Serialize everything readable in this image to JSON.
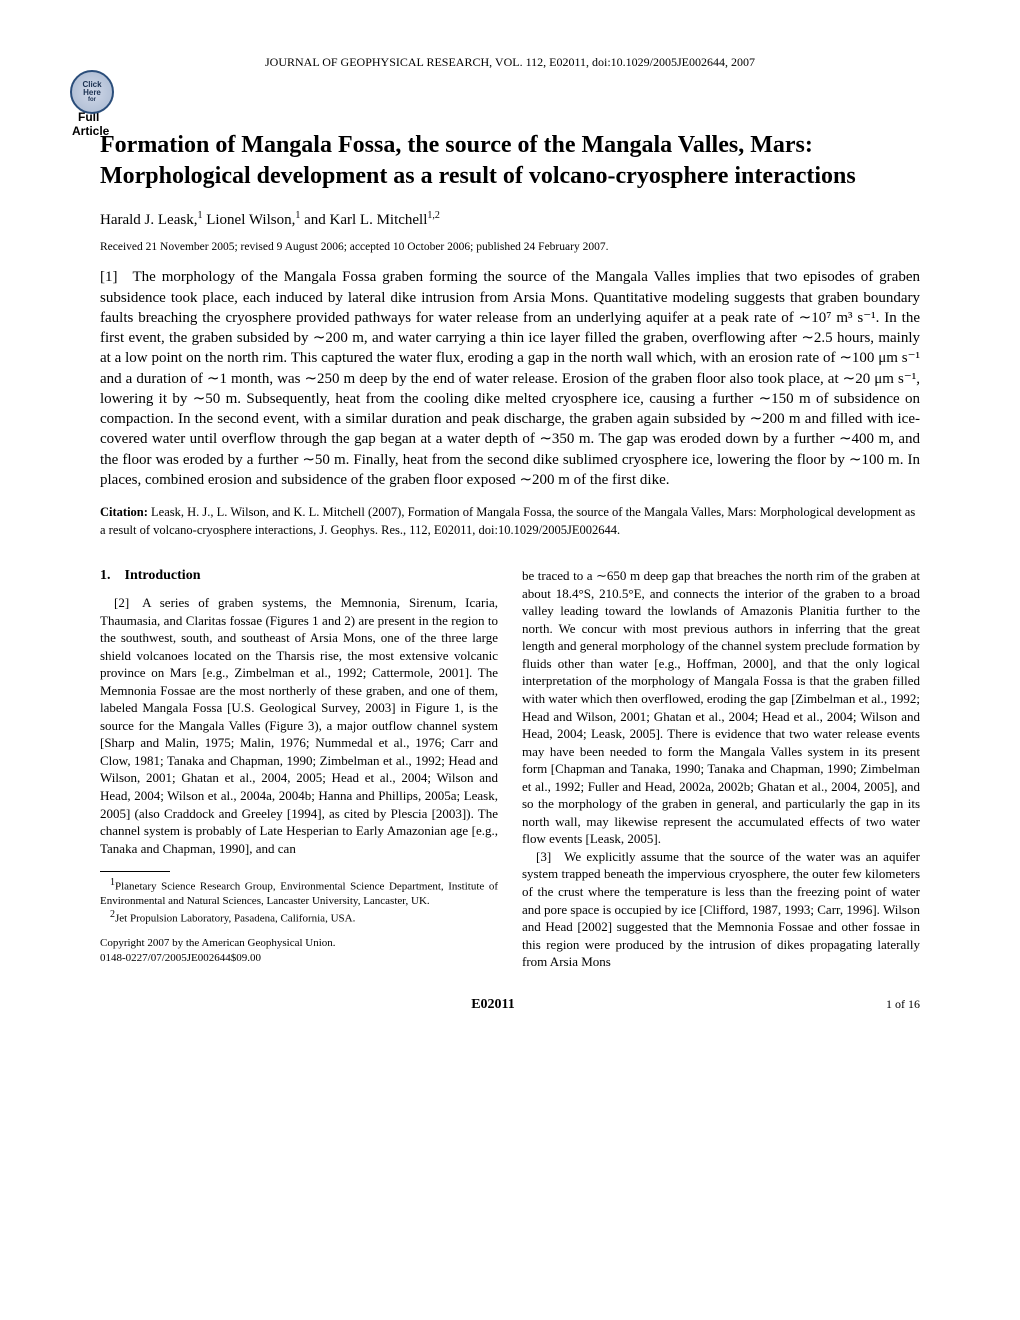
{
  "journal_line": "JOURNAL OF GEOPHYSICAL RESEARCH, VOL. 112, E02011, doi:10.1029/2005JE002644, 2007",
  "badge": {
    "click": "Click",
    "here": "Here",
    "for": "for",
    "full": "Full",
    "article": "Article"
  },
  "title": "Formation of Mangala Fossa, the source of the Mangala Valles, Mars: Morphological development as a result of volcano-cryosphere interactions",
  "authors_html": "Harald J. Leask,¹ Lionel Wilson,¹ and Karl L. Mitchell¹,²",
  "authors": {
    "a1": "Harald J. Leask,",
    "a1sup": "1",
    "a2": " Lionel Wilson,",
    "a2sup": "1",
    "a3": " and Karl L. Mitchell",
    "a3sup": "1,2"
  },
  "dates": "Received 21 November 2005; revised 9 August 2006; accepted 10 October 2006; published 24 February 2007.",
  "abstract": "[1] The morphology of the Mangala Fossa graben forming the source of the Mangala Valles implies that two episodes of graben subsidence took place, each induced by lateral dike intrusion from Arsia Mons. Quantitative modeling suggests that graben boundary faults breaching the cryosphere provided pathways for water release from an underlying aquifer at a peak rate of ∼10⁷ m³ s⁻¹. In the first event, the graben subsided by ∼200 m, and water carrying a thin ice layer filled the graben, overflowing after ∼2.5 hours, mainly at a low point on the north rim. This captured the water flux, eroding a gap in the north wall which, with an erosion rate of ∼100 μm s⁻¹ and a duration of ∼1 month, was ∼250 m deep by the end of water release. Erosion of the graben floor also took place, at ∼20 μm s⁻¹, lowering it by ∼50 m. Subsequently, heat from the cooling dike melted cryosphere ice, causing a further ∼150 m of subsidence on compaction. In the second event, with a similar duration and peak discharge, the graben again subsided by ∼200 m and filled with ice-covered water until overflow through the gap began at a water depth of ∼350 m. The gap was eroded down by a further ∼400 m, and the floor was eroded by a further ∼50 m. Finally, heat from the second dike sublimed cryosphere ice, lowering the floor by ∼100 m. In places, combined erosion and subsidence of the graben floor exposed ∼200 m of the first dike.",
  "citation": {
    "label": "Citation:",
    "text": " Leask, H. J., L. Wilson, and K. L. Mitchell (2007), Formation of Mangala Fossa, the source of the Mangala Valles, Mars: Morphological development as a result of volcano-cryosphere interactions, J. Geophys. Res., 112, E02011, doi:10.1029/2005JE002644."
  },
  "section_heading": "1. Introduction",
  "left_col": {
    "p1": "[2] A series of graben systems, the Memnonia, Sirenum, Icaria, Thaumasia, and Claritas fossae (Figures 1 and 2) are present in the region to the southwest, south, and southeast of Arsia Mons, one of the three large shield volcanoes located on the Tharsis rise, the most extensive volcanic province on Mars [e.g., Zimbelman et al., 1992; Cattermole, 2001]. The Memnonia Fossae are the most northerly of these graben, and one of them, labeled Mangala Fossa [U.S. Geological Survey, 2003] in Figure 1, is the source for the Mangala Valles (Figure 3), a major outflow channel system [Sharp and Malin, 1975; Malin, 1976; Nummedal et al., 1976; Carr and Clow, 1981; Tanaka and Chapman, 1990; Zimbelman et al., 1992; Head and Wilson, 2001; Ghatan et al., 2004, 2005; Head et al., 2004; Wilson and Head, 2004; Wilson et al., 2004a, 2004b; Hanna and Phillips, 2005a; Leask, 2005] (also Craddock and Greeley [1994], as cited by Plescia [2003]). The channel system is probably of Late Hesperian to Early Amazonian age [e.g., Tanaka and Chapman, 1990], and can"
  },
  "right_col": {
    "p1": "be traced to a ∼650 m deep gap that breaches the north rim of the graben at about 18.4°S, 210.5°E, and connects the interior of the graben to a broad valley leading toward the lowlands of Amazonis Planitia further to the north. We concur with most previous authors in inferring that the great length and general morphology of the channel system preclude formation by fluids other than water [e.g., Hoffman, 2000], and that the only logical interpretation of the morphology of Mangala Fossa is that the graben filled with water which then overflowed, eroding the gap [Zimbelman et al., 1992; Head and Wilson, 2001; Ghatan et al., 2004; Head et al., 2004; Wilson and Head, 2004; Leask, 2005]. There is evidence that two water release events may have been needed to form the Mangala Valles system in its present form [Chapman and Tanaka, 1990; Tanaka and Chapman, 1990; Zimbelman et al., 1992; Fuller and Head, 2002a, 2002b; Ghatan et al., 2004, 2005], and so the morphology of the graben in general, and particularly the gap in its north wall, may likewise represent the accumulated effects of two water flow events [Leask, 2005].",
    "p2": "[3] We explicitly assume that the source of the water was an aquifer system trapped beneath the impervious cryosphere, the outer few kilometers of the crust where the temperature is less than the freezing point of water and pore space is occupied by ice [Clifford, 1987, 1993; Carr, 1996]. Wilson and Head [2002] suggested that the Memnonia Fossae and other fossae in this region were produced by the intrusion of dikes propagating laterally from Arsia Mons"
  },
  "footnotes": {
    "f1sup": "1",
    "f1": "Planetary Science Research Group, Environmental Science Department, Institute of Environmental and Natural Sciences, Lancaster University, Lancaster, UK.",
    "f2sup": "2",
    "f2": "Jet Propulsion Laboratory, Pasadena, California, USA."
  },
  "copyright": {
    "line1": "Copyright 2007 by the American Geophysical Union.",
    "line2": "0148-0227/07/2005JE002644$09.00"
  },
  "footer": {
    "center": "E02011",
    "right": "1 of 16"
  }
}
